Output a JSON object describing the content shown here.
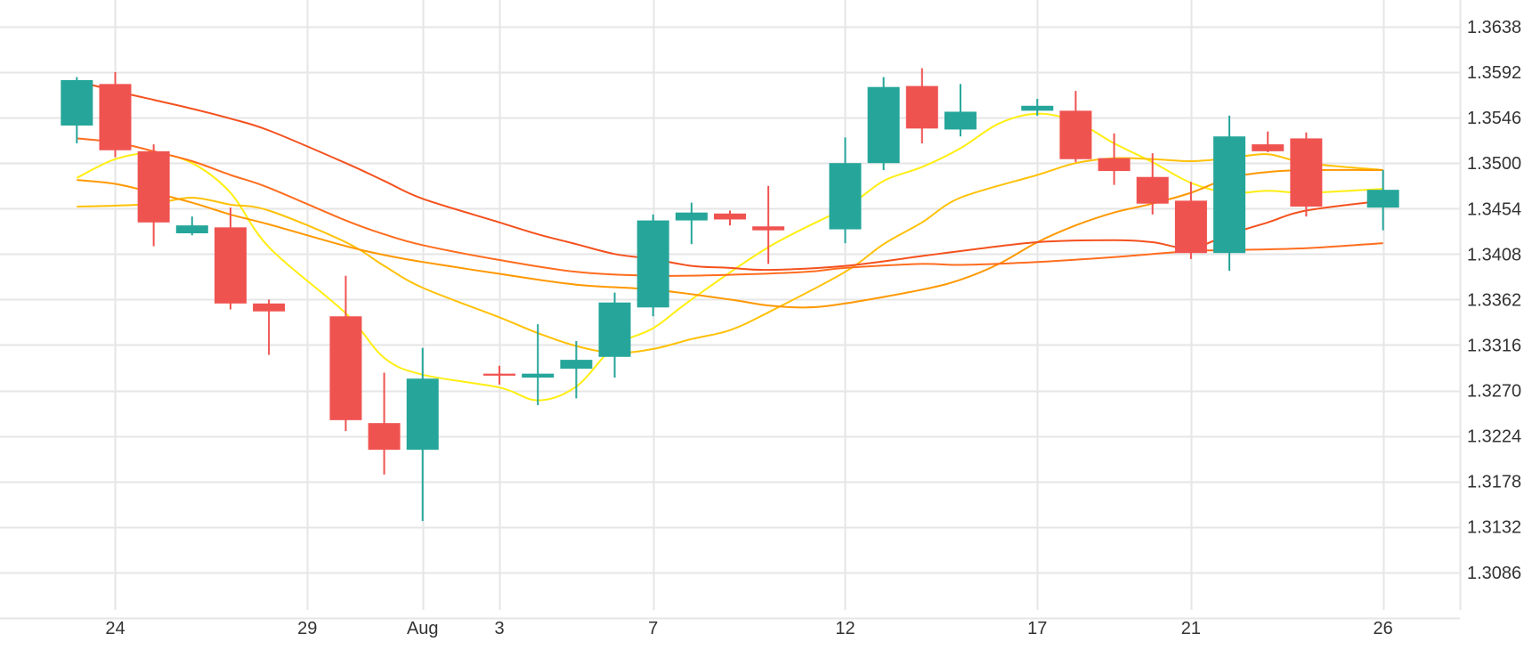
{
  "chart_data": {
    "type": "candlestick",
    "y_ticks": [
      "1.3638",
      "1.3592",
      "1.3546",
      "1.3500",
      "1.3454",
      "1.3408",
      "1.3362",
      "1.3316",
      "1.3270",
      "1.3224",
      "1.3178",
      "1.3132",
      "1.3086"
    ],
    "x_ticks": [
      {
        "label": "24",
        "date": "2023-07-24"
      },
      {
        "label": "29",
        "date": "2023-07-29"
      },
      {
        "label": "Aug",
        "date": "2023-08-01"
      },
      {
        "label": "3",
        "date": "2023-08-03"
      },
      {
        "label": "7",
        "date": "2023-08-07"
      },
      {
        "label": "12",
        "date": "2023-08-12"
      },
      {
        "label": "17",
        "date": "2023-08-17"
      },
      {
        "label": "21",
        "date": "2023-08-21"
      },
      {
        "label": "26",
        "date": "2023-08-26"
      }
    ],
    "ylim": [
      1.3048,
      1.3665
    ],
    "xlim": [
      "2023-07-21",
      "2023-08-28"
    ],
    "grid": true,
    "up_color": "#26a69a",
    "down_color": "#ef5350",
    "candles": [
      {
        "date": "2023-07-23",
        "open": 1.3538,
        "high": 1.3587,
        "low": 1.352,
        "close": 1.3584
      },
      {
        "date": "2023-07-24",
        "open": 1.358,
        "high": 1.3592,
        "low": 1.3506,
        "close": 1.3513
      },
      {
        "date": "2023-07-25",
        "open": 1.3512,
        "high": 1.3519,
        "low": 1.3416,
        "close": 1.344
      },
      {
        "date": "2023-07-26",
        "open": 1.3429,
        "high": 1.3446,
        "low": 1.3427,
        "close": 1.3437
      },
      {
        "date": "2023-07-27",
        "open": 1.3435,
        "high": 1.3455,
        "low": 1.3352,
        "close": 1.3358
      },
      {
        "date": "2023-07-28",
        "open": 1.3358,
        "high": 1.3362,
        "low": 1.3306,
        "close": 1.335
      },
      {
        "date": "2023-07-30",
        "open": 1.3345,
        "high": 1.3386,
        "low": 1.3229,
        "close": 1.324
      },
      {
        "date": "2023-07-31",
        "open": 1.3237,
        "high": 1.3288,
        "low": 1.3185,
        "close": 1.321
      },
      {
        "date": "2023-08-01",
        "open": 1.321,
        "high": 1.3313,
        "low": 1.3138,
        "close": 1.3282
      },
      {
        "date": "2023-08-03",
        "open": 1.3287,
        "high": 1.3295,
        "low": 1.3276,
        "close": 1.3285
      },
      {
        "date": "2023-08-04",
        "open": 1.3283,
        "high": 1.3337,
        "low": 1.3255,
        "close": 1.3287
      },
      {
        "date": "2023-08-05",
        "open": 1.3292,
        "high": 1.332,
        "low": 1.3262,
        "close": 1.3301
      },
      {
        "date": "2023-08-06",
        "open": 1.3304,
        "high": 1.3369,
        "low": 1.3283,
        "close": 1.3359
      },
      {
        "date": "2023-08-07",
        "open": 1.3354,
        "high": 1.3448,
        "low": 1.3345,
        "close": 1.3442
      },
      {
        "date": "2023-08-08",
        "open": 1.3442,
        "high": 1.346,
        "low": 1.3418,
        "close": 1.345
      },
      {
        "date": "2023-08-09",
        "open": 1.3449,
        "high": 1.3452,
        "low": 1.3437,
        "close": 1.3443
      },
      {
        "date": "2023-08-10",
        "open": 1.3436,
        "high": 1.3477,
        "low": 1.3398,
        "close": 1.3432
      },
      {
        "date": "2023-08-12",
        "open": 1.3433,
        "high": 1.3526,
        "low": 1.3419,
        "close": 1.35
      },
      {
        "date": "2023-08-13",
        "open": 1.35,
        "high": 1.3587,
        "low": 1.3493,
        "close": 1.3577
      },
      {
        "date": "2023-08-14",
        "open": 1.3578,
        "high": 1.3596,
        "low": 1.352,
        "close": 1.3535
      },
      {
        "date": "2023-08-15",
        "open": 1.3534,
        "high": 1.358,
        "low": 1.3527,
        "close": 1.3552
      },
      {
        "date": "2023-08-17",
        "open": 1.3553,
        "high": 1.3565,
        "low": 1.3548,
        "close": 1.3558
      },
      {
        "date": "2023-08-18",
        "open": 1.3553,
        "high": 1.3573,
        "low": 1.3501,
        "close": 1.3504
      },
      {
        "date": "2023-08-19",
        "open": 1.3505,
        "high": 1.353,
        "low": 1.3478,
        "close": 1.3492
      },
      {
        "date": "2023-08-20",
        "open": 1.3486,
        "high": 1.351,
        "low": 1.3448,
        "close": 1.3459
      },
      {
        "date": "2023-08-21",
        "open": 1.3462,
        "high": 1.3481,
        "low": 1.3403,
        "close": 1.3409
      },
      {
        "date": "2023-08-22",
        "open": 1.3409,
        "high": 1.3548,
        "low": 1.3391,
        "close": 1.3527
      },
      {
        "date": "2023-08-23",
        "open": 1.3519,
        "high": 1.3532,
        "low": 1.3511,
        "close": 1.3512
      },
      {
        "date": "2023-08-24",
        "open": 1.3525,
        "high": 1.3531,
        "low": 1.3446,
        "close": 1.3456
      },
      {
        "date": "2023-08-26",
        "open": 1.3455,
        "high": 1.3493,
        "low": 1.3432,
        "close": 1.3473
      }
    ],
    "moving_averages": [
      {
        "color": "#ffee11",
        "values": [
          [
            "2023-07-23",
            1.3485
          ],
          [
            "2023-07-24",
            1.3504
          ],
          [
            "2023-07-25",
            1.351
          ],
          [
            "2023-07-26",
            1.35
          ],
          [
            "2023-07-27",
            1.347
          ],
          [
            "2023-07-28",
            1.3415
          ],
          [
            "2023-07-30",
            1.3348
          ],
          [
            "2023-07-31",
            1.3303
          ],
          [
            "2023-08-01",
            1.3286
          ],
          [
            "2023-08-03",
            1.3273
          ],
          [
            "2023-08-04",
            1.326
          ],
          [
            "2023-08-05",
            1.3274
          ],
          [
            "2023-08-06",
            1.3315
          ],
          [
            "2023-08-07",
            1.3333
          ],
          [
            "2023-08-08",
            1.3362
          ],
          [
            "2023-08-10",
            1.3415
          ],
          [
            "2023-08-12",
            1.3455
          ],
          [
            "2023-08-13",
            1.3482
          ],
          [
            "2023-08-14",
            1.3496
          ],
          [
            "2023-08-15",
            1.3515
          ],
          [
            "2023-08-16",
            1.354
          ],
          [
            "2023-08-17",
            1.355
          ],
          [
            "2023-08-18",
            1.3542
          ],
          [
            "2023-08-19",
            1.352
          ],
          [
            "2023-08-20",
            1.3501
          ],
          [
            "2023-08-21",
            1.348
          ],
          [
            "2023-08-22",
            1.347
          ],
          [
            "2023-08-23",
            1.3472
          ],
          [
            "2023-08-24",
            1.347
          ],
          [
            "2023-08-26",
            1.3474
          ]
        ]
      },
      {
        "color": "#ffc107",
        "values": [
          [
            "2023-07-23",
            1.3456
          ],
          [
            "2023-07-24",
            1.3457
          ],
          [
            "2023-07-25",
            1.3459
          ],
          [
            "2023-07-26",
            1.3465
          ],
          [
            "2023-07-27",
            1.3458
          ],
          [
            "2023-07-28",
            1.3452
          ],
          [
            "2023-07-30",
            1.342
          ],
          [
            "2023-07-31",
            1.3396
          ],
          [
            "2023-08-01",
            1.3374
          ],
          [
            "2023-08-03",
            1.3344
          ],
          [
            "2023-08-04",
            1.3328
          ],
          [
            "2023-08-05",
            1.3315
          ],
          [
            "2023-08-06",
            1.3308
          ],
          [
            "2023-08-07",
            1.3312
          ],
          [
            "2023-08-08",
            1.3322
          ],
          [
            "2023-08-09",
            1.3331
          ],
          [
            "2023-08-10",
            1.3349
          ],
          [
            "2023-08-12",
            1.339
          ],
          [
            "2023-08-13",
            1.3418
          ],
          [
            "2023-08-14",
            1.344
          ],
          [
            "2023-08-15",
            1.3465
          ],
          [
            "2023-08-17",
            1.3488
          ],
          [
            "2023-08-18",
            1.35
          ],
          [
            "2023-08-19",
            1.3505
          ],
          [
            "2023-08-20",
            1.3504
          ],
          [
            "2023-08-21",
            1.3502
          ],
          [
            "2023-08-22",
            1.3505
          ],
          [
            "2023-08-23",
            1.3509
          ],
          [
            "2023-08-24",
            1.35
          ],
          [
            "2023-08-26",
            1.3493
          ]
        ]
      },
      {
        "color": "#ff9800",
        "values": [
          [
            "2023-07-23",
            1.3483
          ],
          [
            "2023-07-24",
            1.3479
          ],
          [
            "2023-07-25",
            1.347
          ],
          [
            "2023-07-26",
            1.346
          ],
          [
            "2023-07-27",
            1.3448
          ],
          [
            "2023-07-28",
            1.3438
          ],
          [
            "2023-07-30",
            1.3416
          ],
          [
            "2023-07-31",
            1.3407
          ],
          [
            "2023-08-01",
            1.34
          ],
          [
            "2023-08-03",
            1.3388
          ],
          [
            "2023-08-05",
            1.3377
          ],
          [
            "2023-08-07",
            1.3372
          ],
          [
            "2023-08-09",
            1.3362
          ],
          [
            "2023-08-10",
            1.3356
          ],
          [
            "2023-08-11",
            1.3354
          ],
          [
            "2023-08-12",
            1.3358
          ],
          [
            "2023-08-14",
            1.3372
          ],
          [
            "2023-08-15",
            1.3382
          ],
          [
            "2023-08-16",
            1.3398
          ],
          [
            "2023-08-17",
            1.342
          ],
          [
            "2023-08-18",
            1.3437
          ],
          [
            "2023-08-19",
            1.345
          ],
          [
            "2023-08-20",
            1.3459
          ],
          [
            "2023-08-21",
            1.347
          ],
          [
            "2023-08-22",
            1.3485
          ],
          [
            "2023-08-23",
            1.3491
          ],
          [
            "2023-08-24",
            1.3493
          ],
          [
            "2023-08-26",
            1.3493
          ]
        ]
      },
      {
        "color": "#ff6d1f",
        "values": [
          [
            "2023-07-23",
            1.3525
          ],
          [
            "2023-07-24",
            1.3521
          ],
          [
            "2023-07-25",
            1.3512
          ],
          [
            "2023-07-26",
            1.3502
          ],
          [
            "2023-07-27",
            1.3488
          ],
          [
            "2023-07-28",
            1.3475
          ],
          [
            "2023-07-30",
            1.3442
          ],
          [
            "2023-07-31",
            1.3428
          ],
          [
            "2023-08-01",
            1.3417
          ],
          [
            "2023-08-03",
            1.3402
          ],
          [
            "2023-08-05",
            1.339
          ],
          [
            "2023-08-07",
            1.3386
          ],
          [
            "2023-08-09",
            1.3387
          ],
          [
            "2023-08-11",
            1.339
          ],
          [
            "2023-08-12",
            1.3394
          ],
          [
            "2023-08-14",
            1.3398
          ],
          [
            "2023-08-15",
            1.3397
          ],
          [
            "2023-08-17",
            1.34
          ],
          [
            "2023-08-19",
            1.3405
          ],
          [
            "2023-08-21",
            1.3411
          ],
          [
            "2023-08-22",
            1.3412
          ],
          [
            "2023-08-24",
            1.3414
          ],
          [
            "2023-08-26",
            1.3419
          ]
        ]
      },
      {
        "color": "#f4511e",
        "values": [
          [
            "2023-07-23",
            1.3583
          ],
          [
            "2023-07-24",
            1.3573
          ],
          [
            "2023-07-25",
            1.3564
          ],
          [
            "2023-07-26",
            1.3555
          ],
          [
            "2023-07-27",
            1.3545
          ],
          [
            "2023-07-28",
            1.3533
          ],
          [
            "2023-07-30",
            1.35
          ],
          [
            "2023-07-31",
            1.3482
          ],
          [
            "2023-08-01",
            1.3464
          ],
          [
            "2023-08-03",
            1.344
          ],
          [
            "2023-08-04",
            1.3428
          ],
          [
            "2023-08-05",
            1.3418
          ],
          [
            "2023-08-06",
            1.3408
          ],
          [
            "2023-08-07",
            1.3403
          ],
          [
            "2023-08-08",
            1.3396
          ],
          [
            "2023-08-09",
            1.3394
          ],
          [
            "2023-08-10",
            1.3392
          ],
          [
            "2023-08-12",
            1.3396
          ],
          [
            "2023-08-14",
            1.3406
          ],
          [
            "2023-08-15",
            1.3411
          ],
          [
            "2023-08-17",
            1.342
          ],
          [
            "2023-08-19",
            1.3422
          ],
          [
            "2023-08-20",
            1.342
          ],
          [
            "2023-08-21",
            1.3414
          ],
          [
            "2023-08-22",
            1.3428
          ],
          [
            "2023-08-23",
            1.344
          ],
          [
            "2023-08-24",
            1.3452
          ],
          [
            "2023-08-26",
            1.3462
          ]
        ]
      }
    ]
  }
}
